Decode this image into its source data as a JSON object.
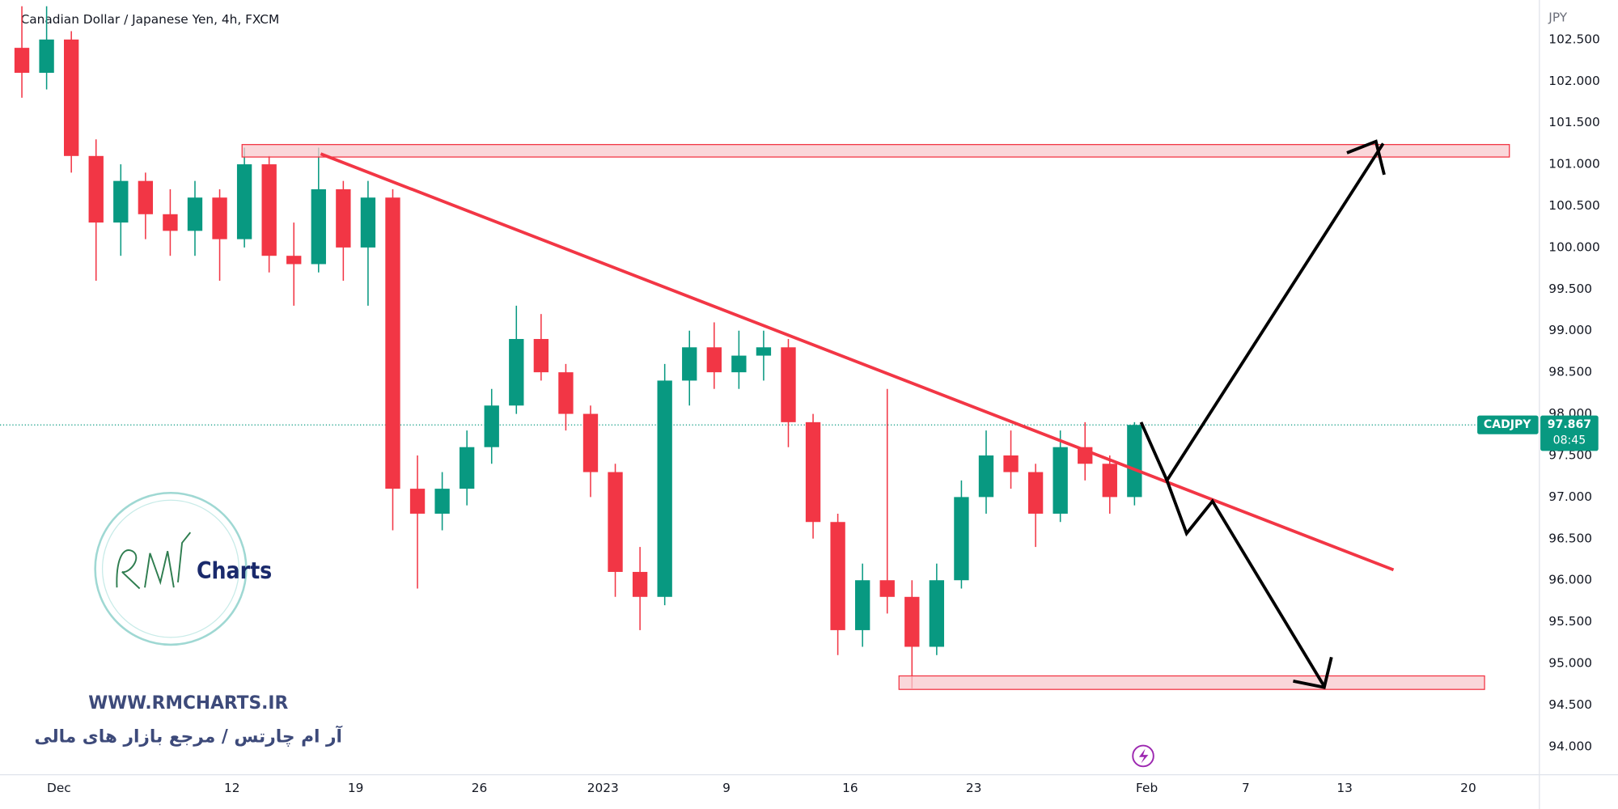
{
  "chart_data": {
    "type": "candlestick",
    "title": "Canadian Dollar / Japanese Yen, 4h, FXCM",
    "currency": "JPY",
    "symbol_tag": "CADJPY",
    "last_price": 97.867,
    "countdown": "08:45",
    "watermark_url": "WWW.RMCHARTS.IR",
    "watermark_text": "آر ام چارتس / مرجع بازار های مالی",
    "logo_text": "Charts",
    "up_color": "#089981",
    "down_color": "#f23645",
    "x": [
      -2,
      -1,
      0,
      1,
      2,
      3,
      4,
      5,
      6,
      7,
      8,
      9,
      10,
      11,
      12,
      13,
      14,
      15,
      16,
      17,
      18,
      19,
      20,
      21,
      22,
      23,
      24,
      25,
      26,
      27,
      28,
      29,
      30,
      31,
      32,
      33,
      34,
      35,
      36,
      37,
      38,
      39,
      40,
      41,
      42,
      43
    ],
    "open": [
      102.4,
      102.1,
      102.5,
      101.1,
      100.3,
      100.8,
      100.4,
      100.2,
      100.6,
      100.1,
      101.0,
      99.9,
      99.8,
      100.7,
      100.0,
      100.6,
      97.1,
      96.8,
      97.1,
      97.6,
      98.1,
      98.9,
      98.5,
      98.0,
      97.3,
      96.1,
      95.8,
      98.4,
      98.8,
      98.5,
      98.7,
      98.8,
      97.9,
      96.7,
      95.4,
      96.0,
      95.8,
      95.2,
      96.0,
      97.0,
      97.5,
      97.3,
      96.8,
      97.6,
      97.4,
      97.0
    ],
    "high": [
      102.9,
      102.9,
      102.6,
      101.3,
      101.0,
      100.9,
      100.7,
      100.8,
      100.7,
      101.2,
      101.1,
      100.3,
      101.2,
      100.8,
      100.8,
      100.7,
      97.5,
      97.3,
      97.8,
      98.3,
      99.3,
      99.2,
      98.6,
      98.1,
      97.4,
      96.4,
      98.6,
      99.0,
      99.1,
      99.0,
      99.0,
      98.9,
      98.0,
      96.8,
      96.2,
      98.3,
      96.0,
      96.2,
      97.2,
      97.8,
      97.8,
      97.4,
      97.8,
      97.9,
      97.5,
      97.9
    ],
    "low": [
      101.8,
      101.9,
      100.9,
      99.6,
      99.9,
      100.1,
      99.9,
      99.9,
      99.6,
      100.0,
      99.7,
      99.3,
      99.7,
      99.6,
      99.3,
      96.6,
      95.9,
      96.6,
      96.9,
      97.4,
      98.0,
      98.4,
      97.8,
      97.0,
      95.8,
      95.4,
      95.7,
      98.1,
      98.3,
      98.3,
      98.4,
      97.6,
      96.5,
      95.1,
      95.2,
      95.6,
      94.7,
      95.1,
      95.9,
      96.8,
      97.1,
      96.4,
      96.7,
      97.2,
      96.8,
      96.9
    ],
    "close": [
      102.1,
      102.5,
      101.1,
      100.3,
      100.8,
      100.4,
      100.2,
      100.6,
      100.1,
      101.0,
      99.9,
      99.8,
      100.7,
      100.0,
      100.6,
      97.1,
      96.8,
      97.1,
      97.6,
      98.1,
      98.9,
      98.5,
      98.0,
      97.3,
      96.1,
      95.8,
      98.4,
      98.8,
      98.5,
      98.7,
      98.8,
      97.9,
      96.7,
      95.4,
      96.0,
      95.8,
      95.2,
      96.0,
      97.0,
      97.5,
      97.3,
      96.8,
      97.6,
      97.4,
      97.0,
      97.867
    ],
    "xlim": [
      -2.385,
      59.875
    ],
    "xticks": [
      {
        "value": 0,
        "label": "Dec"
      },
      {
        "value": 7,
        "label": "12"
      },
      {
        "value": 12,
        "label": "19"
      },
      {
        "value": 17,
        "label": "26"
      },
      {
        "value": 22,
        "label": "2023"
      },
      {
        "value": 27,
        "label": "9"
      },
      {
        "value": 32,
        "label": "16"
      },
      {
        "value": 37,
        "label": "23"
      },
      {
        "value": 44,
        "label": "Feb"
      },
      {
        "value": 48,
        "label": "7"
      },
      {
        "value": 52,
        "label": "13"
      },
      {
        "value": 57,
        "label": "20"
      }
    ],
    "ylim": [
      93.6625,
      102.975
    ],
    "yticks": [
      {
        "value": 94,
        "label": "94.000"
      },
      {
        "value": 94.5,
        "label": "94.500"
      },
      {
        "value": 95,
        "label": "95.000"
      },
      {
        "value": 95.5,
        "label": "95.500"
      },
      {
        "value": 96,
        "label": "96.000"
      },
      {
        "value": 96.5,
        "label": "96.500"
      },
      {
        "value": 97,
        "label": "97.000"
      },
      {
        "value": 97.5,
        "label": "97.500"
      },
      {
        "value": 98,
        "label": "98.000"
      },
      {
        "value": 98.5,
        "label": "98.500"
      },
      {
        "value": 99,
        "label": "99.000"
      },
      {
        "value": 99.5,
        "label": "99.500"
      },
      {
        "value": 100,
        "label": "100.000"
      },
      {
        "value": 100.5,
        "label": "100.500"
      },
      {
        "value": 101,
        "label": "101.000"
      },
      {
        "value": 101.5,
        "label": "101.500"
      },
      {
        "value": 102,
        "label": "102.000"
      },
      {
        "value": 102.5,
        "label": "102.500"
      }
    ],
    "grid": false
  }
}
